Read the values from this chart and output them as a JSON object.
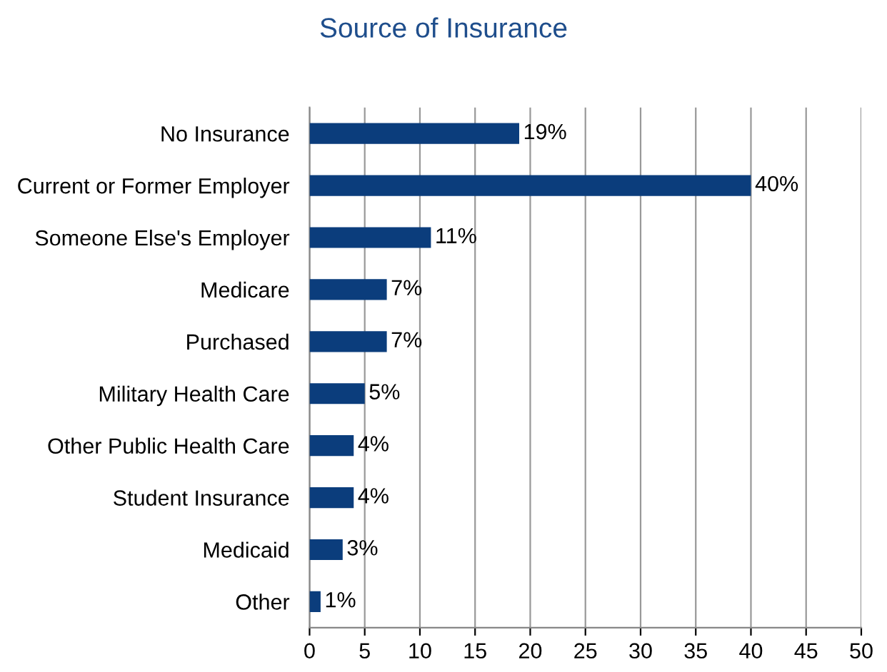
{
  "chart_data": {
    "type": "bar",
    "orientation": "horizontal",
    "title": "Source of Insurance",
    "categories": [
      "No Insurance",
      "Current or Former Employer",
      "Someone Else's Employer",
      "Medicare",
      "Purchased",
      "Military Health Care",
      "Other Public Health Care",
      "Student Insurance",
      "Medicaid",
      "Other"
    ],
    "values": [
      19,
      40,
      11,
      7,
      7,
      5,
      4,
      4,
      3,
      1
    ],
    "value_labels": [
      "19%",
      "40%",
      "11%",
      "7%",
      "7%",
      "5%",
      "4%",
      "4%",
      "3%",
      "1%"
    ],
    "color": "#0b3d7c",
    "xlim": [
      0,
      50
    ],
    "xticks": [
      0,
      5,
      10,
      15,
      20,
      25,
      30,
      35,
      40,
      45,
      50
    ],
    "grid": "x"
  }
}
